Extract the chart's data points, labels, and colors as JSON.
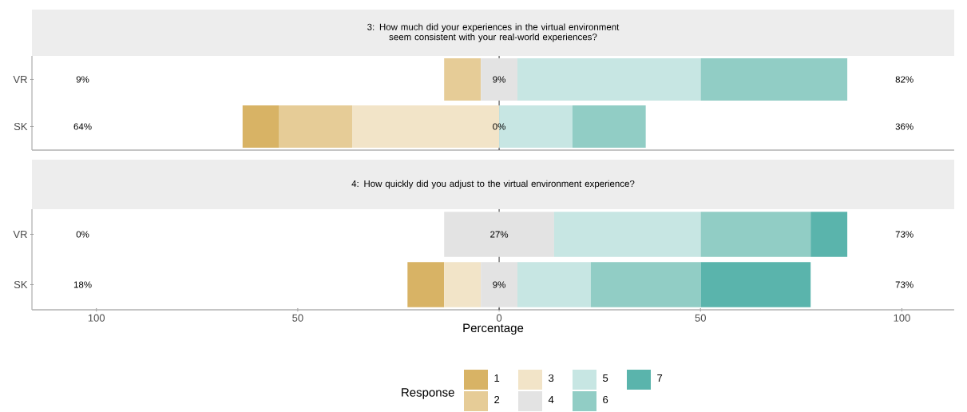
{
  "chart_data": [
    {
      "type": "bar",
      "orientation": "horizontal",
      "title": "3: How much did your experiences in the virtual environment seem consistent with your real-world experiences?",
      "categories": [
        "VR",
        "SK"
      ],
      "xlim": [
        -116,
        113
      ],
      "tick_labels": "y",
      "series": [
        {
          "color": "#d8b365",
          "values": [
            null,
            9.1
          ],
          "base": [
            null,
            -63.7
          ]
        },
        {
          "color": "#e6cc97",
          "values": [
            9.1,
            18.2
          ],
          "base": [
            -13.65,
            -54.6
          ]
        },
        {
          "color": "#f2e4c8",
          "values": [
            null,
            36.4
          ],
          "base": [
            null,
            -36.4
          ]
        },
        {
          "color": "#e3e3e3",
          "values": [
            9.1,
            null
          ],
          "base": [
            -4.55,
            null
          ]
        },
        {
          "color": "#c7e6e3",
          "values": [
            45.5,
            18.2
          ],
          "base": [
            4.55,
            0
          ]
        },
        {
          "color": "#91cdc5",
          "values": [
            36.4,
            18.2
          ],
          "base": [
            50.05,
            18.2
          ]
        }
      ],
      "ref_lines": [
        {
          "axis": "x",
          "value": 0,
          "color": "#000000"
        }
      ],
      "annotations": [
        "9%",
        "9%",
        "82%",
        "64%",
        "0%",
        "36%"
      ]
    },
    {
      "type": "bar",
      "orientation": "horizontal",
      "title": "4: How quickly did you adjust to the virtual environment experience?",
      "xlabel": "Percentage",
      "categories": [
        "VR",
        "SK"
      ],
      "xlim": [
        -116,
        113
      ],
      "xticks": [
        {
          "value": -100,
          "label": "100"
        },
        {
          "value": -50,
          "label": "50"
        },
        0,
        50,
        100
      ],
      "legend": "bottom",
      "legend_title": "Response",
      "series": [
        {
          "name": "1",
          "color": "#d8b365",
          "values": [
            null,
            9.1
          ],
          "base": [
            null,
            -22.75
          ]
        },
        {
          "name": "2",
          "color": "#e6cc97",
          "values": [
            null,
            null
          ],
          "base": [
            null,
            null
          ]
        },
        {
          "name": "3",
          "color": "#f2e4c8",
          "values": [
            null,
            9.1
          ],
          "base": [
            null,
            -13.65
          ]
        },
        {
          "name": "4",
          "color": "#e3e3e3",
          "values": [
            27.3,
            9.1
          ],
          "base": [
            -13.65,
            -4.55
          ]
        },
        {
          "name": "5",
          "color": "#c7e6e3",
          "values": [
            36.4,
            18.2
          ],
          "base": [
            13.65,
            4.55
          ]
        },
        {
          "name": "6",
          "color": "#91cdc5",
          "values": [
            27.3,
            27.3
          ],
          "base": [
            50.05,
            22.75
          ]
        },
        {
          "name": "7",
          "color": "#5ab4ac",
          "values": [
            9.1,
            27.3
          ],
          "base": [
            77.35,
            50.05
          ]
        }
      ],
      "ref_lines": [
        {
          "axis": "x",
          "value": 0,
          "color": "#000000"
        }
      ],
      "annotations": [
        "0%",
        "27%",
        "73%",
        "18%",
        "9%",
        "73%"
      ]
    }
  ]
}
